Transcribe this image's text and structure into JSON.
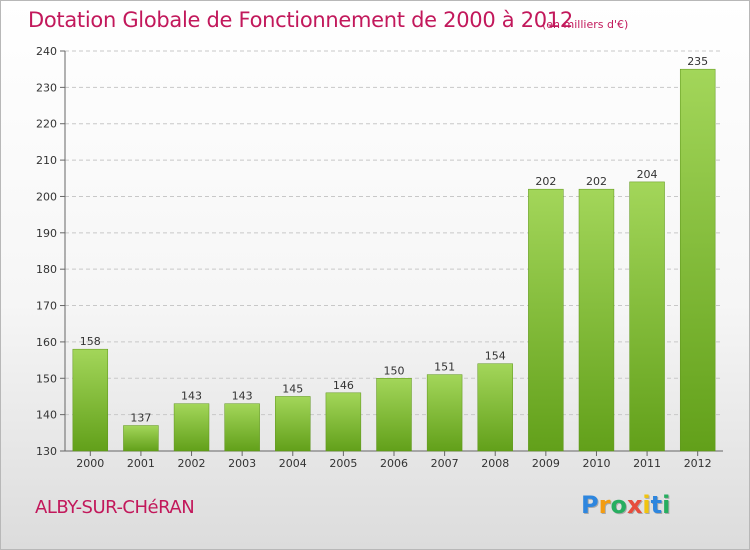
{
  "chart_data": {
    "type": "bar",
    "title": "Dotation Globale de Fonctionnement de 2000 à 2012",
    "subtitle": "(en milliers d'€)",
    "categories": [
      "2000",
      "2001",
      "2002",
      "2003",
      "2004",
      "2005",
      "2006",
      "2007",
      "2008",
      "2009",
      "2010",
      "2011",
      "2012"
    ],
    "values": [
      158,
      137,
      143,
      143,
      145,
      146,
      150,
      151,
      154,
      202,
      202,
      204,
      235
    ],
    "ylim": [
      130,
      240
    ],
    "yticks": [
      130,
      140,
      150,
      160,
      170,
      180,
      190,
      200,
      210,
      220,
      230,
      240
    ],
    "grid": true,
    "legend": "none",
    "bar_color_top": "#a3d65a",
    "bar_color_bottom": "#62a01a",
    "grid_color": "#c8c8c8"
  },
  "footer": {
    "commune": "ALBY-SUR-CHéRAN",
    "logo_letters": [
      {
        "ch": "P",
        "color": "#2e86de"
      },
      {
        "ch": "r",
        "color": "#f39c12"
      },
      {
        "ch": "o",
        "color": "#27ae60"
      },
      {
        "ch": "x",
        "color": "#e74c3c"
      },
      {
        "ch": "i",
        "color": "#f1c40f"
      },
      {
        "ch": "t",
        "color": "#2e86de"
      },
      {
        "ch": "i",
        "color": "#27ae60"
      }
    ]
  }
}
